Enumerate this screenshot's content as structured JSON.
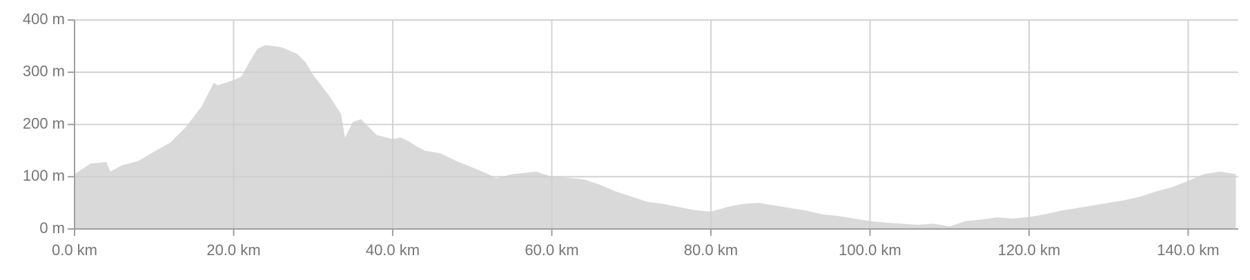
{
  "chart_data": {
    "type": "area",
    "x": [
      0,
      2,
      4,
      4.5,
      6,
      8,
      10,
      12,
      14,
      16,
      17.5,
      18,
      20,
      21,
      22,
      23,
      24,
      26,
      28,
      29,
      30,
      32,
      33.5,
      34,
      35,
      36,
      38,
      40,
      41,
      42,
      43,
      44,
      46,
      48,
      50,
      52,
      53,
      55,
      57,
      58,
      60,
      62,
      64,
      66,
      68,
      70,
      72,
      74,
      76,
      78,
      80,
      82,
      84,
      86,
      88,
      90,
      92,
      94,
      96,
      98,
      100,
      102,
      104,
      106,
      108,
      110,
      112,
      114,
      116,
      118,
      120,
      122,
      124,
      126,
      128,
      130,
      132,
      134,
      136,
      138,
      140,
      142,
      144,
      146
    ],
    "values": [
      105,
      125,
      128,
      110,
      122,
      130,
      148,
      165,
      195,
      235,
      280,
      275,
      285,
      292,
      320,
      345,
      352,
      348,
      335,
      320,
      295,
      255,
      220,
      175,
      205,
      210,
      180,
      172,
      175,
      168,
      158,
      150,
      145,
      130,
      118,
      105,
      97,
      105,
      108,
      110,
      100,
      98,
      95,
      85,
      72,
      62,
      52,
      48,
      42,
      36,
      33,
      42,
      48,
      50,
      45,
      40,
      35,
      28,
      25,
      20,
      15,
      12,
      10,
      8,
      10,
      5,
      15,
      18,
      22,
      20,
      23,
      28,
      35,
      40,
      45,
      50,
      55,
      62,
      72,
      80,
      92,
      105,
      110,
      105
    ],
    "color": "#d9d9d9",
    "xlim": [
      0,
      146.3
    ],
    "ylim": [
      0,
      400
    ],
    "xticks": [
      {
        "value": 0,
        "label": "0.0 km"
      },
      {
        "value": 20,
        "label": "20.0 km"
      },
      {
        "value": 40,
        "label": "40.0 km"
      },
      {
        "value": 60,
        "label": "60.0 km"
      },
      {
        "value": 80,
        "label": "80.0 km"
      },
      {
        "value": 100,
        "label": "100.0 km"
      },
      {
        "value": 120,
        "label": "120.0 km"
      },
      {
        "value": 140,
        "label": "140.0 km"
      }
    ],
    "yticks": [
      {
        "value": 0,
        "label": "0 m"
      },
      {
        "value": 100,
        "label": "100 m"
      },
      {
        "value": 200,
        "label": "200 m"
      },
      {
        "value": 300,
        "label": "300 m"
      },
      {
        "value": 400,
        "label": "400 m"
      }
    ],
    "grid": true
  }
}
